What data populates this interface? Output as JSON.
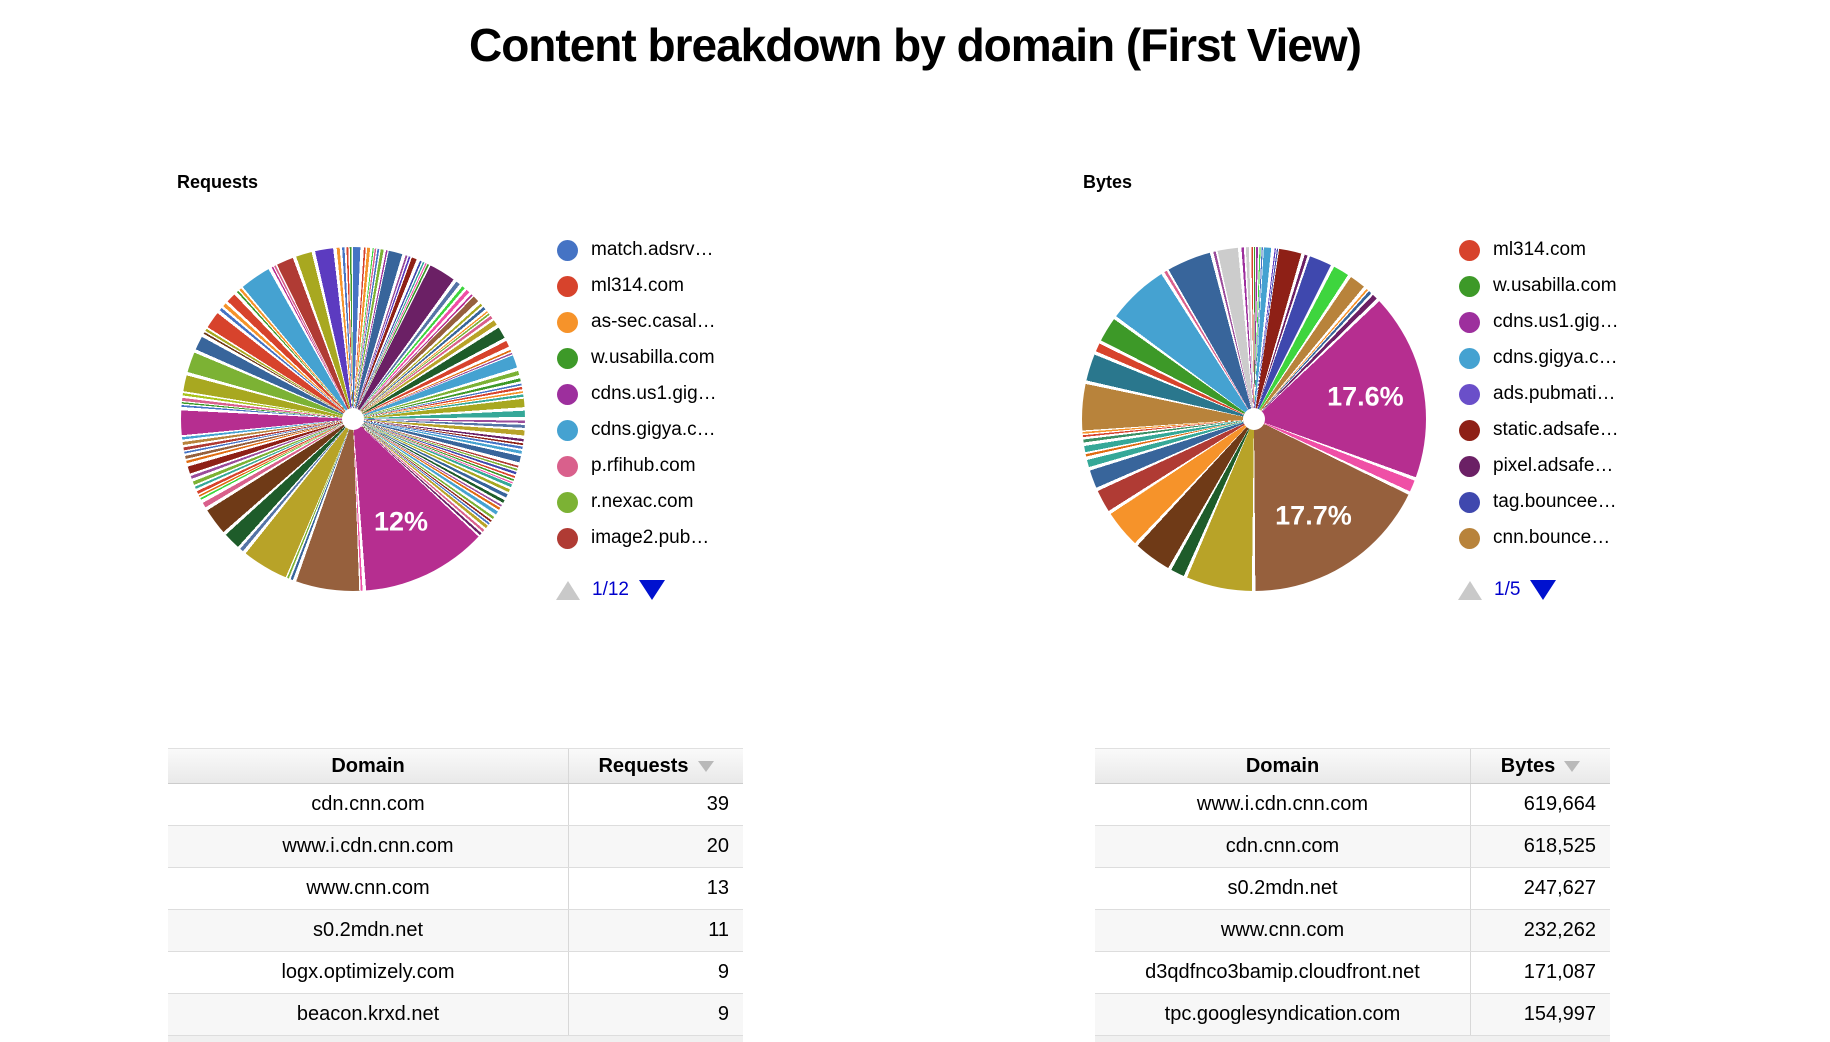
{
  "title": "Content breakdown by domain (First View)",
  "ui_colors": {
    "pager_active": "#0011cf",
    "pager_text": "#0000cc",
    "pager_disabled": "#c9c9c9",
    "sort_icon": "#b9b9b9",
    "pct_label_text": "#ffffff"
  },
  "chart_data": [
    {
      "id": "requests",
      "type": "pie",
      "title": "Requests",
      "legend_position": "right",
      "legend": [
        {
          "label": "match.adsrv…",
          "color": "#4573c4"
        },
        {
          "label": "ml314.com",
          "color": "#d7432c"
        },
        {
          "label": "as-sec.casal…",
          "color": "#f6932a"
        },
        {
          "label": "w.usabilla.com",
          "color": "#3d9928"
        },
        {
          "label": "cdns.us1.gig…",
          "color": "#9d2f9d"
        },
        {
          "label": "cdns.gigya.c…",
          "color": "#45a2d1"
        },
        {
          "label": "p.rfihub.com",
          "color": "#d9608c"
        },
        {
          "label": "r.nexac.com",
          "color": "#7cb234"
        },
        {
          "label": "image2.pub…",
          "color": "#b03b34"
        }
      ],
      "pager": {
        "page": "1/12",
        "up_enabled": false,
        "down_enabled": true
      },
      "labeled_slices": [
        {
          "label": "12%",
          "value_pct": 12,
          "color": "#b62e90"
        }
      ],
      "slices": [
        [
          "#4573c4",
          1.0
        ],
        [
          "#d7432c",
          0.3
        ],
        [
          "#f6932a",
          0.5
        ],
        [
          "#3ed53e",
          0.2
        ],
        [
          "#d9608c",
          0.25
        ],
        [
          "#4573c4",
          0.3
        ],
        [
          "#7cb234",
          0.5
        ],
        [
          "#9d2f9d",
          0.25
        ],
        [
          "#38659b",
          1.6
        ],
        [
          "#9a4b9a",
          0.3
        ],
        [
          "#5c3bc0",
          0.3
        ],
        [
          "#8e2016",
          0.8
        ],
        [
          "#3f48ae",
          0.3
        ],
        [
          "#35a898",
          0.25
        ],
        [
          "#ef4fa6",
          0.2
        ],
        [
          "#3d9928",
          0.3
        ],
        [
          "#6b2065",
          2.8
        ],
        [
          "#5574a6",
          0.7
        ],
        [
          "#3ed53e",
          0.5
        ],
        [
          "#ef4fa6",
          0.6
        ],
        [
          "#b62e90",
          0.3
        ],
        [
          "#96603d",
          0.9
        ],
        [
          "#a8a820",
          0.4
        ],
        [
          "#38659b",
          0.5
        ],
        [
          "#f6932a",
          0.25
        ],
        [
          "#7cb234",
          0.3
        ],
        [
          "#d9608c",
          0.5
        ],
        [
          "#b8a328",
          0.8
        ],
        [
          "#1e5c2a",
          1.4
        ],
        [
          "#d7432c",
          0.9
        ],
        [
          "#e06c12",
          0.3
        ],
        [
          "#9a4b9a",
          0.25
        ],
        [
          "#45a2d1",
          1.5
        ],
        [
          "#7cb234",
          0.7
        ],
        [
          "#3d9928",
          0.5
        ],
        [
          "#4573c4",
          0.3
        ],
        [
          "#d7432c",
          0.4
        ],
        [
          "#f6932a",
          0.3
        ],
        [
          "#35a898",
          0.4
        ],
        [
          "#a8a820",
          1.1
        ],
        [
          "#35a898",
          0.9
        ],
        [
          "#9a4b9a",
          0.4
        ],
        [
          "#5574a6",
          0.5
        ],
        [
          "#b8a328",
          0.8
        ],
        [
          "#6b2065",
          0.4
        ],
        [
          "#8e2016",
          0.3
        ],
        [
          "#4573c4",
          0.4
        ],
        [
          "#45a2d1",
          0.5
        ],
        [
          "#38659b",
          0.9
        ],
        [
          "#b03b34",
          0.3
        ],
        [
          "#7cb234",
          0.3
        ],
        [
          "#3f48ae",
          0.4
        ],
        [
          "#d7432c",
          0.3
        ],
        [
          "#3d9928",
          0.3
        ],
        [
          "#ef4fa6",
          0.2
        ],
        [
          "#35a898",
          0.5
        ],
        [
          "#a8a820",
          0.5
        ],
        [
          "#38659b",
          0.6
        ],
        [
          "#1e5c2a",
          0.5
        ],
        [
          "#9a4b9a",
          0.3
        ],
        [
          "#e06c12",
          0.4
        ],
        [
          "#45a2d1",
          0.6
        ],
        [
          "#7cb234",
          0.4
        ],
        [
          "#8e2016",
          0.3
        ],
        [
          "#4573c4",
          0.3
        ],
        [
          "#b8a328",
          0.5
        ],
        [
          "#d9608c",
          0.4
        ],
        [
          "#6b2065",
          0.4
        ],
        [
          "#b62e90",
          12.0,
          "12%"
        ],
        [
          "#ef4fa6",
          0.3
        ],
        [
          "#96603d",
          6.2
        ],
        [
          "#38659b",
          0.4
        ],
        [
          "#7cb234",
          0.3
        ],
        [
          "#b8a328",
          4.6
        ],
        [
          "#5574a6",
          0.6
        ],
        [
          "#1e5c2a",
          1.9
        ],
        [
          "#6f3a17",
          2.8
        ],
        [
          "#d9608c",
          0.8
        ],
        [
          "#3ed53e",
          0.3
        ],
        [
          "#e06c12",
          0.3
        ],
        [
          "#d7432c",
          0.5
        ],
        [
          "#35a898",
          0.4
        ],
        [
          "#7cb234",
          0.6
        ],
        [
          "#9a4b9a",
          0.5
        ],
        [
          "#8e2016",
          1.0
        ],
        [
          "#e06c12",
          0.4
        ],
        [
          "#96603d",
          0.5
        ],
        [
          "#4573c4",
          0.3
        ],
        [
          "#b03b34",
          0.5
        ],
        [
          "#b8833b",
          0.5
        ],
        [
          "#45a2d1",
          0.4
        ],
        [
          "#b62e90",
          2.6
        ],
        [
          "#4573c4",
          0.3
        ],
        [
          "#3d9928",
          0.25
        ],
        [
          "#d9608c",
          0.5
        ],
        [
          "#a9c41c",
          0.4
        ],
        [
          "#a8a820",
          1.8
        ],
        [
          "#7cb234",
          2.2
        ],
        [
          "#38659b",
          1.6
        ],
        [
          "#6f3a17",
          0.3
        ],
        [
          "#a8a820",
          0.4
        ],
        [
          "#d7432c",
          1.9
        ],
        [
          "#4573c4",
          0.5
        ],
        [
          "#f6932a",
          0.6
        ],
        [
          "#d7432c",
          1.2
        ],
        [
          "#3d9928",
          0.3
        ],
        [
          "#f6932a",
          0.4
        ],
        [
          "#45a2d1",
          3.2
        ],
        [
          "#b62e90",
          0.25
        ],
        [
          "#d9608c",
          0.3
        ],
        [
          "#b03b34",
          1.9
        ],
        [
          "#a8a820",
          1.8
        ],
        [
          "#5c3bc0",
          2.0
        ],
        [
          "#f6932a",
          0.5
        ],
        [
          "#4573c4",
          0.4
        ],
        [
          "#d7432c",
          0.3
        ],
        [
          "#3d9928",
          0.3
        ]
      ],
      "table": {
        "headers": [
          "Domain",
          "Requests"
        ],
        "sorted_by": "Requests",
        "sort_direction": "desc",
        "rows": [
          [
            "cdn.cnn.com",
            "39"
          ],
          [
            "www.i.cdn.cnn.com",
            "20"
          ],
          [
            "www.cnn.com",
            "13"
          ],
          [
            "s0.2mdn.net",
            "11"
          ],
          [
            "logx.optimizely.com",
            "9"
          ],
          [
            "beacon.krxd.net",
            "9"
          ]
        ]
      }
    },
    {
      "id": "bytes",
      "type": "pie",
      "title": "Bytes",
      "legend_position": "right",
      "legend": [
        {
          "label": "ml314.com",
          "color": "#d7432c"
        },
        {
          "label": "w.usabilla.com",
          "color": "#3d9928"
        },
        {
          "label": "cdns.us1.gig…",
          "color": "#9d2f9d"
        },
        {
          "label": "cdns.gigya.c…",
          "color": "#45a2d1"
        },
        {
          "label": "ads.pubmati…",
          "color": "#6a4fc9"
        },
        {
          "label": "static.adsafe…",
          "color": "#8e2016"
        },
        {
          "label": "pixel.adsafe…",
          "color": "#6b2065"
        },
        {
          "label": "tag.bouncee…",
          "color": "#3f48ae"
        },
        {
          "label": "cnn.bounce…",
          "color": "#b8833b"
        }
      ],
      "pager": {
        "page": "1/5",
        "up_enabled": false,
        "down_enabled": true
      },
      "labeled_slices": [
        {
          "label": "17.6%",
          "value_pct": 17.6,
          "color": "#b62e90"
        },
        {
          "label": "17.7%",
          "value_pct": 17.7,
          "color": "#96603d"
        }
      ],
      "slices": [
        [
          "#3d9928",
          0.2
        ],
        [
          "#9d2f9d",
          0.3
        ],
        [
          "#3ed53e",
          0.2
        ],
        [
          "#4573c4",
          0.2
        ],
        [
          "#45a2d1",
          1.0
        ],
        [
          "#5c3bc0",
          0.2
        ],
        [
          "#3f48ae",
          0.2
        ],
        [
          "#8e2016",
          2.4
        ],
        [
          "#6b2065",
          0.5
        ],
        [
          "#3f48ae",
          2.4
        ],
        [
          "#3ed53e",
          1.8
        ],
        [
          "#b8833b",
          1.8
        ],
        [
          "#f6932a",
          0.3
        ],
        [
          "#38659b",
          0.5
        ],
        [
          "#6b2065",
          0.8
        ],
        [
          "#b62e90",
          17.6,
          "17.6%"
        ],
        [
          "#ef4fa6",
          1.4
        ],
        [
          "#96603d",
          17.7,
          "17.7%"
        ],
        [
          "#b8a328",
          6.4
        ],
        [
          "#1e5c2a",
          1.6
        ],
        [
          "#6f3a17",
          3.8
        ],
        [
          "#f6932a",
          3.8
        ],
        [
          "#b03b34",
          2.4
        ],
        [
          "#38659b",
          2.0
        ],
        [
          "#35a898",
          1.0
        ],
        [
          "#e06c12",
          0.4
        ],
        [
          "#35a898",
          0.9
        ],
        [
          "#3a8f63",
          0.5
        ],
        [
          "#d7432c",
          0.3
        ],
        [
          "#f6932a",
          0.3
        ],
        [
          "#b8833b",
          4.6
        ],
        [
          "#2a778d",
          2.8
        ],
        [
          "#d7432c",
          1.1
        ],
        [
          "#3d9928",
          2.6
        ],
        [
          "#45a2d1",
          6.0
        ],
        [
          "#d9608c",
          0.45
        ],
        [
          "#38659b",
          4.4
        ],
        [
          "#9a4b9a",
          0.4
        ],
        [
          "#cccccc",
          2.2
        ],
        [
          "#9d2f9d",
          0.4
        ],
        [
          "#cccccc",
          0.5
        ],
        [
          "#d7432c",
          0.25
        ]
      ],
      "table": {
        "headers": [
          "Domain",
          "Bytes"
        ],
        "sorted_by": "Bytes",
        "sort_direction": "desc",
        "rows": [
          [
            "www.i.cdn.cnn.com",
            "619,664"
          ],
          [
            "cdn.cnn.com",
            "618,525"
          ],
          [
            "s0.2mdn.net",
            "247,627"
          ],
          [
            "www.cnn.com",
            "232,262"
          ],
          [
            "d3qdfnco3bamip.cloudfront.net",
            "171,087"
          ],
          [
            "tpc.googlesyndication.com",
            "154,997"
          ]
        ]
      }
    }
  ]
}
